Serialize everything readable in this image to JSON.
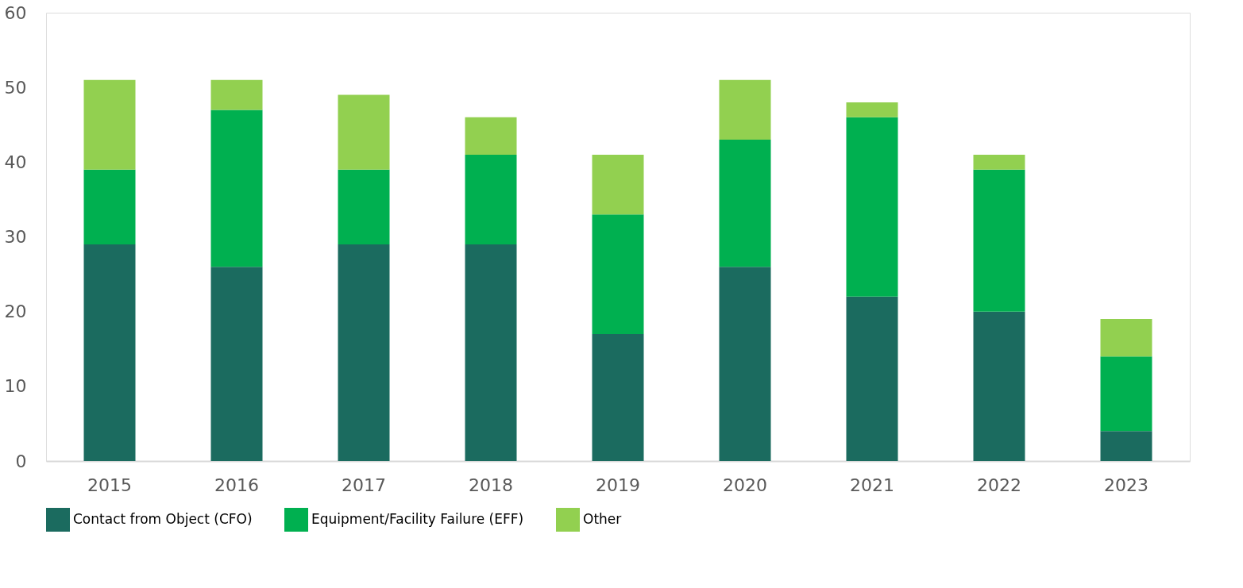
{
  "chart_data": {
    "type": "bar",
    "stacked": true,
    "categories": [
      "2015",
      "2016",
      "2017",
      "2018",
      "2019",
      "2020",
      "2021",
      "2022",
      "2023"
    ],
    "series": [
      {
        "name": "Contact from Object (CFO)",
        "color": "#1b6b5f",
        "values": [
          29,
          26,
          29,
          29,
          17,
          26,
          22,
          20,
          4
        ]
      },
      {
        "name": "Equipment/Facility Failure (EFF)",
        "color": "#00b050",
        "values": [
          10,
          21,
          10,
          12,
          16,
          17,
          24,
          19,
          10
        ]
      },
      {
        "name": "Other",
        "color": "#92d050",
        "values": [
          12,
          4,
          10,
          5,
          8,
          8,
          2,
          2,
          5
        ]
      }
    ],
    "ylim": [
      0,
      60
    ],
    "yticks": [
      0,
      10,
      20,
      30,
      40,
      50,
      60
    ],
    "grid": false,
    "legend": "bottom"
  }
}
